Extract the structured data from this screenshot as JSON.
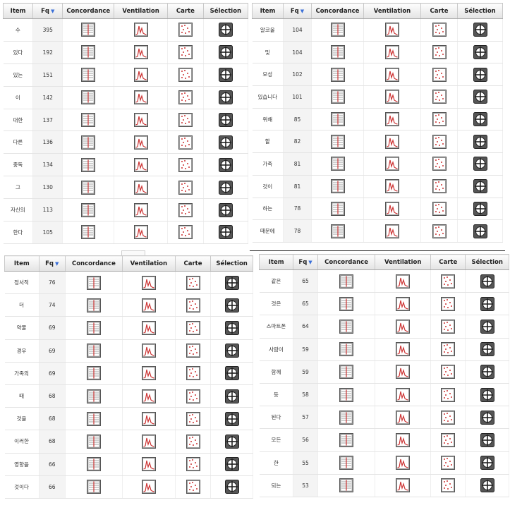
{
  "columns": {
    "item": "Item",
    "fq": "Fq",
    "concordance": "Concordance",
    "ventilation": "Ventilation",
    "carte": "Carte",
    "selection": "Sélection",
    "sort_indicator": "▼"
  },
  "icons": {
    "concordance": "concordance-icon",
    "ventilation": "ventilation-icon",
    "carte": "carte-map-icon",
    "selection": "selection-crosshair-icon"
  },
  "colors": {
    "header_bg": "#e6e6e6",
    "fq_bg": "#f4f4f4",
    "sort_arrow": "#3a6fd8",
    "icon_red": "#cc3333"
  },
  "panels": [
    {
      "rows": [
        {
          "item": "수",
          "fq": "395"
        },
        {
          "item": "있다",
          "fq": "192"
        },
        {
          "item": "있는",
          "fq": "151"
        },
        {
          "item": "이",
          "fq": "142"
        },
        {
          "item": "대한",
          "fq": "137"
        },
        {
          "item": "다른",
          "fq": "136"
        },
        {
          "item": "중독",
          "fq": "134"
        },
        {
          "item": "그",
          "fq": "130"
        },
        {
          "item": "자신의",
          "fq": "113"
        },
        {
          "item": "한다",
          "fq": "105"
        }
      ]
    },
    {
      "rows": [
        {
          "item": "알코올",
          "fq": "104"
        },
        {
          "item": "및",
          "fq": "104"
        },
        {
          "item": "모성",
          "fq": "102"
        },
        {
          "item": "있습니다",
          "fq": "101"
        },
        {
          "item": "위해",
          "fq": "85"
        },
        {
          "item": "할",
          "fq": "82"
        },
        {
          "item": "가족",
          "fq": "81"
        },
        {
          "item": "것이",
          "fq": "81"
        },
        {
          "item": "하는",
          "fq": "78"
        },
        {
          "item": "때문에",
          "fq": "78"
        }
      ]
    },
    {
      "rows": [
        {
          "item": "정서적",
          "fq": "76"
        },
        {
          "item": "더",
          "fq": "74"
        },
        {
          "item": "약물",
          "fq": "69"
        },
        {
          "item": "경우",
          "fq": "69"
        },
        {
          "item": "가족의",
          "fq": "69"
        },
        {
          "item": "때",
          "fq": "68"
        },
        {
          "item": "것을",
          "fq": "68"
        },
        {
          "item": "이러한",
          "fq": "68"
        },
        {
          "item": "영향을",
          "fq": "66"
        },
        {
          "item": "것이다",
          "fq": "66"
        }
      ]
    },
    {
      "rows": [
        {
          "item": "같은",
          "fq": "65"
        },
        {
          "item": "것은",
          "fq": "65"
        },
        {
          "item": "스마트폰",
          "fq": "64"
        },
        {
          "item": "사람이",
          "fq": "59"
        },
        {
          "item": "함께",
          "fq": "59"
        },
        {
          "item": "등",
          "fq": "58"
        },
        {
          "item": "된다",
          "fq": "57"
        },
        {
          "item": "모든",
          "fq": "56"
        },
        {
          "item": "한",
          "fq": "55"
        },
        {
          "item": "되는",
          "fq": "53"
        }
      ]
    }
  ]
}
